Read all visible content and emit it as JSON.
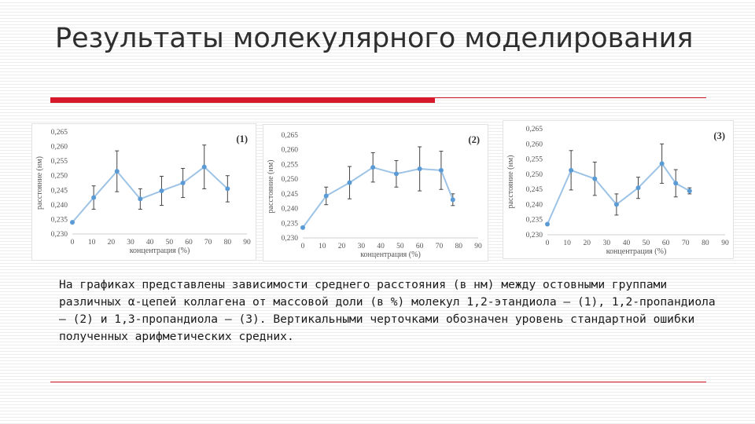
{
  "slide": {
    "title": "Результаты молекулярного моделирования",
    "caption": "На графиках представлены зависимости среднего расстояния (в нм) между остовными группами различных α-цепей коллагена от массовой доли (в %) молекул 1,2-этандиола – (1), 1,2-пропандиола – (2) и 1,3-пропандиола – (3). Вертикальными черточками обозначен уровень стандартной ошибки полученных арифметических средних.",
    "accent_color": "#d6182a"
  },
  "chart_data": [
    {
      "type": "line",
      "label": "(1)",
      "xlabel": "концентрация (%)",
      "ylabel": "расстояние (нм)",
      "xlim": [
        0,
        90
      ],
      "ylim": [
        0.23,
        0.265
      ],
      "xticks": [
        "0",
        "10",
        "20",
        "30",
        "40",
        "50",
        "60",
        "70",
        "80",
        "90"
      ],
      "yticks": [
        "0,230",
        "0,235",
        "0,240",
        "0,245",
        "0,250",
        "0,255",
        "0,260",
        "0,265"
      ],
      "grid": false,
      "series_color": "#9dc3e6",
      "marker_color": "#5b9bd5",
      "points": [
        {
          "x": 0,
          "y": 0.234,
          "err": 0
        },
        {
          "x": 11,
          "y": 0.2425,
          "err": 0.004
        },
        {
          "x": 23,
          "y": 0.2515,
          "err": 0.007
        },
        {
          "x": 35,
          "y": 0.242,
          "err": 0.0035
        },
        {
          "x": 46,
          "y": 0.2448,
          "err": 0.005
        },
        {
          "x": 57,
          "y": 0.2475,
          "err": 0.005
        },
        {
          "x": 68,
          "y": 0.253,
          "err": 0.0075
        },
        {
          "x": 80,
          "y": 0.2455,
          "err": 0.0045
        }
      ]
    },
    {
      "type": "line",
      "label": "(2)",
      "xlabel": "концентрация (%)",
      "ylabel": "расстояние (нм)",
      "xlim": [
        0,
        90
      ],
      "ylim": [
        0.23,
        0.265
      ],
      "xticks": [
        "0",
        "10",
        "20",
        "30",
        "40",
        "50",
        "60",
        "70",
        "80",
        "90"
      ],
      "yticks": [
        "0,230",
        "0,235",
        "0,240",
        "0,245",
        "0,250",
        "0,255",
        "0,260",
        "0,265"
      ],
      "grid": false,
      "series_color": "#9dc3e6",
      "marker_color": "#5b9bd5",
      "points": [
        {
          "x": 0,
          "y": 0.2335,
          "err": 0
        },
        {
          "x": 12,
          "y": 0.2443,
          "err": 0.003
        },
        {
          "x": 24,
          "y": 0.2488,
          "err": 0.0055
        },
        {
          "x": 36,
          "y": 0.254,
          "err": 0.005
        },
        {
          "x": 48,
          "y": 0.2518,
          "err": 0.0045
        },
        {
          "x": 60,
          "y": 0.2535,
          "err": 0.0075
        },
        {
          "x": 71,
          "y": 0.253,
          "err": 0.0065
        },
        {
          "x": 77,
          "y": 0.243,
          "err": 0.002
        }
      ]
    },
    {
      "type": "line",
      "label": "(3)",
      "xlabel": "концентрация (%)",
      "ylabel": "расстояние (нм)",
      "xlim": [
        0,
        90
      ],
      "ylim": [
        0.23,
        0.265
      ],
      "xticks": [
        "0",
        "10",
        "20",
        "30",
        "40",
        "50",
        "60",
        "70",
        "80",
        "90"
      ],
      "yticks": [
        "0,230",
        "0,235",
        "0,240",
        "0,245",
        "0,250",
        "0,255",
        "0,260",
        "0,265"
      ],
      "grid": false,
      "series_color": "#9dc3e6",
      "marker_color": "#5b9bd5",
      "points": [
        {
          "x": 0,
          "y": 0.2335,
          "err": 0
        },
        {
          "x": 12,
          "y": 0.2513,
          "err": 0.0065
        },
        {
          "x": 24,
          "y": 0.2485,
          "err": 0.0055
        },
        {
          "x": 35,
          "y": 0.24,
          "err": 0.0035
        },
        {
          "x": 46,
          "y": 0.2455,
          "err": 0.0035
        },
        {
          "x": 58,
          "y": 0.2535,
          "err": 0.0065
        },
        {
          "x": 65,
          "y": 0.247,
          "err": 0.0045
        },
        {
          "x": 72,
          "y": 0.2445,
          "err": 0.001
        }
      ]
    }
  ]
}
